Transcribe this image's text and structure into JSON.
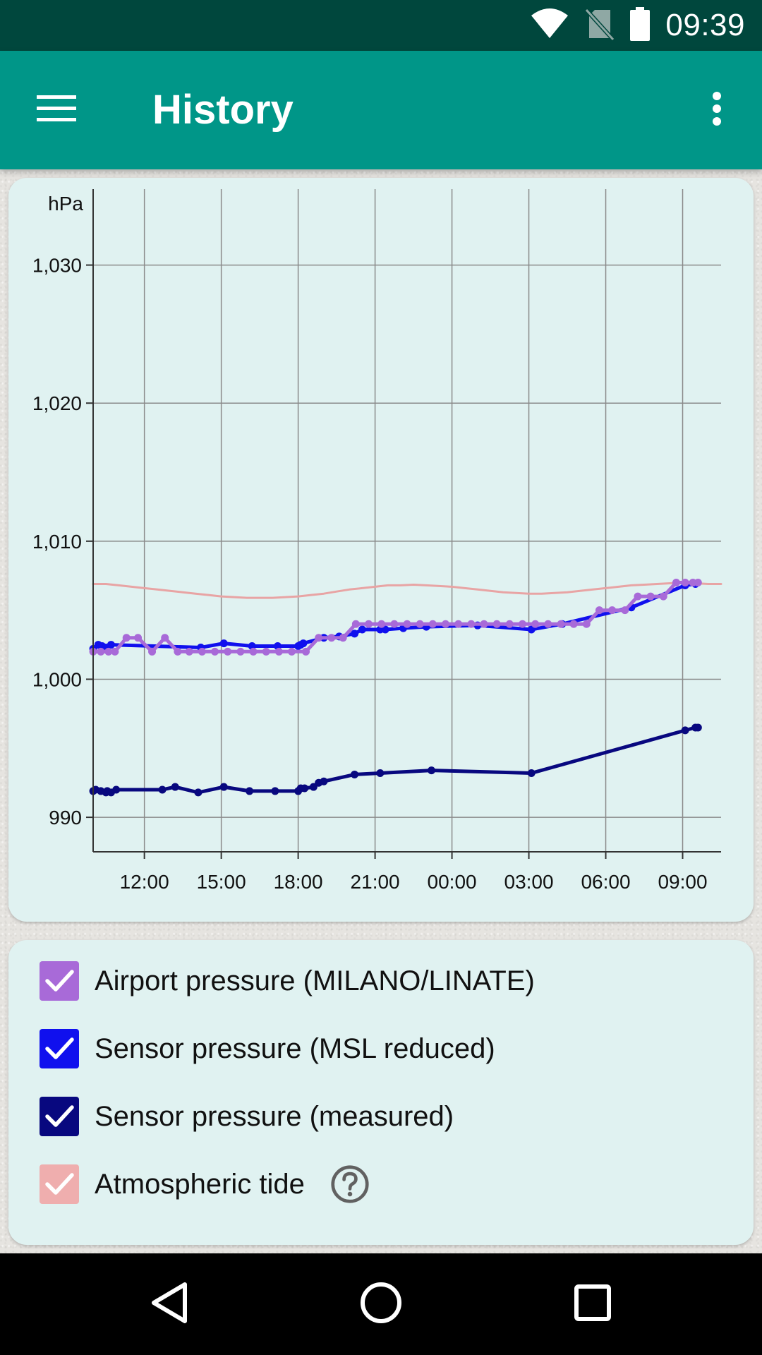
{
  "status_bar": {
    "time": "09:39",
    "icons": [
      "wifi-icon",
      "no-sim-icon",
      "battery-icon"
    ]
  },
  "app_bar": {
    "title": "History",
    "menu_icon": "hamburger-menu-icon",
    "overflow_icon": "more-vert-icon"
  },
  "chart_data": {
    "type": "line",
    "ylabel": "hPa",
    "ylim": [
      987.5,
      1035.5
    ],
    "xlim": [
      10.0,
      34.5
    ],
    "y_ticks": [
      {
        "value": 990,
        "label": "990"
      },
      {
        "value": 1000,
        "label": "1,000"
      },
      {
        "value": 1010,
        "label": "1,010"
      },
      {
        "value": 1020,
        "label": "1,020"
      },
      {
        "value": 1030,
        "label": "1,030"
      }
    ],
    "x_ticks": [
      {
        "value": 12,
        "label": "12:00"
      },
      {
        "value": 15,
        "label": "15:00"
      },
      {
        "value": 18,
        "label": "18:00"
      },
      {
        "value": 21,
        "label": "21:00"
      },
      {
        "value": 24,
        "label": "00:00"
      },
      {
        "value": 27,
        "label": "03:00"
      },
      {
        "value": 30,
        "label": "06:00"
      },
      {
        "value": 33,
        "label": "09:00"
      }
    ],
    "grid": true,
    "series": [
      {
        "name": "Atmospheric tide",
        "color": "#e8a4a4",
        "markers": false,
        "x": [
          10,
          10.5,
          11,
          11.5,
          12,
          12.5,
          13,
          13.5,
          14,
          14.5,
          15,
          15.5,
          16,
          16.5,
          17,
          17.5,
          18,
          18.5,
          19,
          19.5,
          20,
          20.5,
          21,
          21.5,
          22,
          22.5,
          23,
          23.5,
          24,
          24.5,
          25,
          25.5,
          26,
          26.5,
          27,
          27.5,
          28,
          28.5,
          29,
          29.5,
          30,
          30.5,
          31,
          31.5,
          32,
          32.5,
          33,
          33.5,
          34,
          34.5
        ],
        "y": [
          1006.9,
          1006.9,
          1006.8,
          1006.7,
          1006.6,
          1006.5,
          1006.4,
          1006.3,
          1006.2,
          1006.1,
          1006.0,
          1005.95,
          1005.9,
          1005.9,
          1005.9,
          1005.95,
          1006.0,
          1006.1,
          1006.2,
          1006.35,
          1006.5,
          1006.6,
          1006.7,
          1006.8,
          1006.8,
          1006.85,
          1006.8,
          1006.75,
          1006.7,
          1006.6,
          1006.5,
          1006.4,
          1006.3,
          1006.25,
          1006.2,
          1006.2,
          1006.25,
          1006.3,
          1006.4,
          1006.5,
          1006.6,
          1006.7,
          1006.8,
          1006.85,
          1006.9,
          1006.95,
          1007.0,
          1006.95,
          1006.9,
          1006.9
        ]
      },
      {
        "name": "Sensor pressure (MSL reduced)",
        "color": "#1010ee",
        "markers": true,
        "x": [
          10.0,
          10.2,
          10.35,
          10.5,
          10.7,
          14.2,
          15.1,
          16.2,
          17.2,
          18.0,
          18.1,
          18.2,
          19.0,
          19.6,
          20.2,
          20.5,
          21.2,
          21.4,
          22.1,
          23.0,
          25.0,
          27.1,
          28.3,
          31.0,
          33.1,
          33.5
        ],
        "y": [
          1002.2,
          1002.5,
          1002.4,
          1002.3,
          1002.5,
          1002.3,
          1002.6,
          1002.4,
          1002.4,
          1002.4,
          1002.5,
          1002.6,
          1003.0,
          1003.1,
          1003.3,
          1003.6,
          1003.6,
          1003.6,
          1003.7,
          1003.8,
          1003.9,
          1003.6,
          1004.0,
          1005.2,
          1006.8,
          1006.9
        ]
      },
      {
        "name": "Airport pressure (MILANO/LINATE)",
        "color": "#a86ad8",
        "markers": true,
        "x": [
          10.0,
          10.3,
          10.6,
          10.85,
          11.3,
          11.75,
          12.3,
          12.8,
          13.3,
          13.75,
          14.25,
          14.75,
          15.25,
          15.75,
          16.25,
          16.75,
          17.25,
          17.75,
          18.3,
          18.8,
          19.3,
          19.75,
          20.25,
          20.75,
          21.25,
          21.75,
          22.25,
          22.75,
          23.25,
          23.75,
          24.25,
          24.75,
          25.25,
          25.75,
          26.25,
          26.75,
          27.25,
          27.75,
          28.25,
          28.75,
          29.25,
          29.75,
          30.25,
          30.75,
          31.25,
          31.75,
          32.25,
          32.75,
          33.1,
          33.4,
          33.6
        ],
        "y": [
          1002,
          1002,
          1002,
          1002,
          1003,
          1003,
          1002,
          1003,
          1002,
          1002,
          1002,
          1002,
          1002,
          1002,
          1002,
          1002,
          1002,
          1002,
          1002,
          1003,
          1003,
          1003,
          1004,
          1004,
          1004,
          1004,
          1004,
          1004,
          1004,
          1004,
          1004,
          1004,
          1004,
          1004,
          1004,
          1004,
          1004,
          1004,
          1004,
          1004,
          1004,
          1005,
          1005,
          1005,
          1006,
          1006,
          1006,
          1007,
          1007,
          1007,
          1007
        ]
      },
      {
        "name": "Sensor pressure (measured)",
        "color": "#08087f",
        "markers": true,
        "x": [
          10.0,
          10.1,
          10.3,
          10.5,
          10.55,
          10.7,
          10.9,
          12.7,
          13.2,
          14.1,
          15.1,
          16.1,
          17.1,
          18.0,
          18.1,
          18.25,
          18.6,
          18.8,
          19.0,
          20.2,
          21.2,
          23.2,
          27.1,
          33.1,
          33.5,
          33.6
        ],
        "y": [
          991.9,
          992.0,
          991.9,
          991.8,
          991.9,
          991.8,
          992.0,
          992.0,
          992.2,
          991.8,
          992.2,
          991.9,
          991.9,
          991.9,
          992.1,
          992.1,
          992.2,
          992.5,
          992.6,
          993.1,
          993.2,
          993.4,
          993.2,
          996.3,
          996.5,
          996.5
        ]
      }
    ]
  },
  "legend": {
    "items": [
      {
        "label": "Airport pressure (MILANO/LINATE)",
        "checked": true,
        "color": "#a86ad8"
      },
      {
        "label": "Sensor pressure (MSL reduced)",
        "checked": true,
        "color": "#1010ee"
      },
      {
        "label": "Sensor pressure (measured)",
        "checked": true,
        "color": "#08087f"
      },
      {
        "label": "Atmospheric tide",
        "checked": true,
        "color": "#efaeae"
      }
    ],
    "help_icon": "help-circle-icon"
  },
  "nav_bar": {
    "icons": [
      "back-icon",
      "home-icon",
      "recents-icon"
    ]
  }
}
